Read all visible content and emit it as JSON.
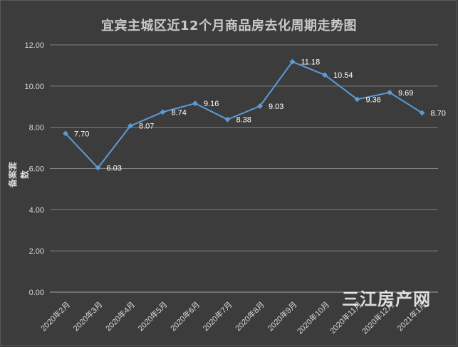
{
  "chart_data": {
    "type": "line",
    "title": "宜宾主城区近12个月商品房去化周期走势图",
    "xlabel": "",
    "ylabel": "备案套数",
    "categories": [
      "2020年2月",
      "2020年3月",
      "2020年4月",
      "2020年5月",
      "2020年6月",
      "2020年7月",
      "2020年8月",
      "2020年9月",
      "2020年10月",
      "2020年11月",
      "2020年12月",
      "2021年1月"
    ],
    "series": [
      {
        "values": [
          7.7,
          6.03,
          8.07,
          8.74,
          9.16,
          8.38,
          9.03,
          11.18,
          10.54,
          9.36,
          9.69,
          8.7
        ],
        "labels": [
          "7.70",
          "6.03",
          "8.07",
          "8.74",
          "9.16",
          "8.38",
          "9.03",
          "11.18",
          "10.54",
          "9.36",
          "9.69",
          "8.70"
        ],
        "color": "#5b9bd5"
      }
    ],
    "ylim": [
      0,
      12
    ],
    "yticks": [
      0,
      2,
      4,
      6,
      8,
      10,
      12
    ],
    "ytick_labels": [
      "0.00",
      "2.00",
      "4.00",
      "6.00",
      "8.00",
      "10.00",
      "12.00"
    ],
    "grid": true,
    "background": "#3c3c3c",
    "gridline_color": "#808080"
  },
  "watermark": {
    "text": "三江房产网"
  }
}
